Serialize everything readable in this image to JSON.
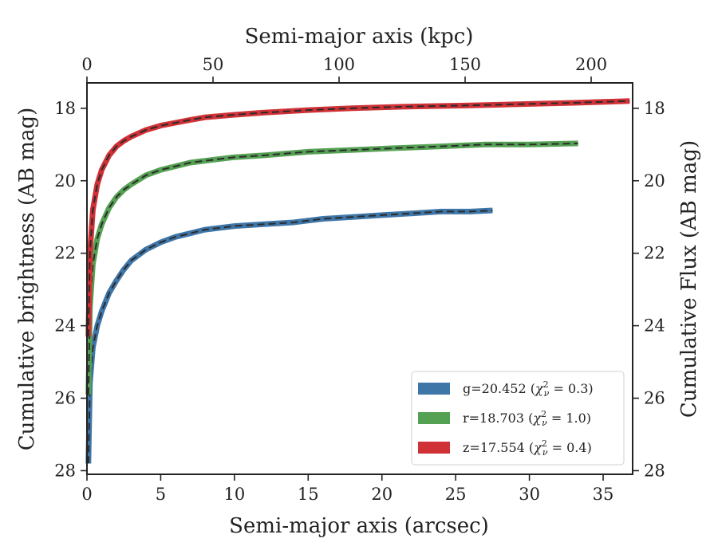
{
  "chart_data": {
    "type": "line",
    "xlabel_bottom": "Semi-major axis (arcsec)",
    "xlabel_top": "Semi-major axis (kpc)",
    "ylabel_left": "Cumulative brightness (AB mag)",
    "ylabel_right": "Cumulative Flux (AB mag)",
    "xlim": [
      0,
      37
    ],
    "ylim": [
      28.1,
      17.3
    ],
    "y_inverted": true,
    "grid": false,
    "legend_placement": "lower-right",
    "x_ticks": [
      0,
      5,
      10,
      15,
      20,
      25,
      30,
      35
    ],
    "x_tick_labels": [
      "0",
      "5",
      "10",
      "15",
      "20",
      "25",
      "30",
      "35"
    ],
    "top_ticks_kpc": [
      0,
      50,
      100,
      150,
      200
    ],
    "top_tick_labels": [
      "0",
      "50",
      "100",
      "150",
      "200"
    ],
    "kpc_per_arcsec": 5.85,
    "y_ticks": [
      18,
      20,
      22,
      24,
      26,
      28
    ],
    "y_tick_labels": [
      "18",
      "20",
      "22",
      "24",
      "26",
      "28"
    ],
    "series": [
      {
        "name": "g=20.452 (χ²ν = 0.3)",
        "legend_main": "g=20.452 (",
        "legend_chi": "χ",
        "legend_sup": "2",
        "legend_sub": "ν",
        "legend_end": " = 0.3)",
        "color": "#3f76a8",
        "x": [
          0.1,
          0.2,
          0.4,
          0.7,
          1.0,
          1.5,
          2.0,
          2.5,
          3.0,
          4.0,
          5.0,
          6.0,
          7.0,
          8.0,
          9.0,
          10.0,
          12.0,
          14.0,
          16.0,
          18.0,
          20.0,
          22.0,
          24.0,
          26.0,
          27.5
        ],
        "y": [
          27.8,
          25.6,
          24.6,
          24.0,
          23.6,
          23.1,
          22.75,
          22.45,
          22.2,
          21.9,
          21.7,
          21.55,
          21.45,
          21.35,
          21.3,
          21.25,
          21.2,
          21.15,
          21.05,
          21.0,
          20.95,
          20.9,
          20.85,
          20.85,
          20.82
        ]
      },
      {
        "name": "r=18.703 (χ²ν = 1.0)",
        "legend_main": "r=18.703 (",
        "legend_chi": "χ",
        "legend_sup": "2",
        "legend_sub": "ν",
        "legend_end": " = 1.0)",
        "color": "#55a153",
        "x": [
          0.1,
          0.2,
          0.4,
          0.7,
          1.0,
          1.5,
          2.0,
          2.5,
          3.0,
          4.0,
          5.0,
          6.0,
          7.0,
          8.0,
          10.0,
          12.0,
          15.0,
          18.0,
          21.0,
          24.0,
          27.0,
          30.0,
          33.3
        ],
        "y": [
          25.9,
          23.5,
          22.3,
          21.6,
          21.2,
          20.75,
          20.45,
          20.25,
          20.1,
          19.85,
          19.7,
          19.6,
          19.5,
          19.45,
          19.35,
          19.3,
          19.2,
          19.15,
          19.1,
          19.05,
          19.0,
          19.0,
          18.97
        ]
      },
      {
        "name": "z=17.554 (χ²ν = 0.4)",
        "legend_main": "z=17.554 (",
        "legend_chi": "χ",
        "legend_sup": "2",
        "legend_sub": "ν",
        "legend_end": " = 0.4)",
        "color": "#d03136",
        "x": [
          0.1,
          0.2,
          0.4,
          0.7,
          1.0,
          1.5,
          2.0,
          2.5,
          3.0,
          4.0,
          5.0,
          6.0,
          7.0,
          8.0,
          10.0,
          12.0,
          15.0,
          18.0,
          22.0,
          26.0,
          30.0,
          33.0,
          36.8
        ],
        "y": [
          24.3,
          22.0,
          20.8,
          20.1,
          19.7,
          19.3,
          19.05,
          18.9,
          18.78,
          18.6,
          18.48,
          18.4,
          18.32,
          18.25,
          18.18,
          18.12,
          18.05,
          18.0,
          17.95,
          17.92,
          17.88,
          17.85,
          17.8
        ]
      }
    ]
  }
}
